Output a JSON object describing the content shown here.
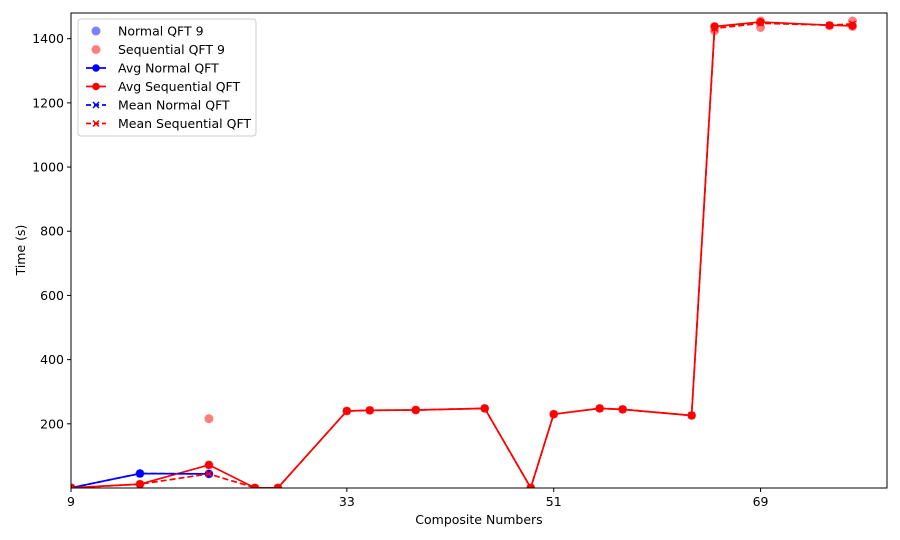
{
  "chart_data": {
    "type": "line",
    "title": "",
    "xlabel": "Composite Numbers",
    "ylabel": "Time (s)",
    "xlim": [
      9,
      80
    ],
    "ylim": [
      0,
      1480
    ],
    "xticks": [
      9,
      33,
      51,
      69
    ],
    "yticks": [
      200,
      400,
      600,
      800,
      1000,
      1200,
      1400
    ],
    "grid": false,
    "legend_position": "top-left",
    "series": [
      {
        "name": "Normal QFT 9",
        "kind": "scatter",
        "color": "#0000ff",
        "points": [
          [
            9,
            0.5
          ],
          [
            15,
            45
          ],
          [
            21,
            44
          ]
        ]
      },
      {
        "name": "Sequential QFT 9",
        "kind": "scatter",
        "color": "#ff0000",
        "points": [
          [
            9,
            0.5
          ],
          [
            15,
            12
          ],
          [
            21,
            216
          ],
          [
            21,
            72
          ],
          [
            25,
            0.5
          ],
          [
            27,
            0.5
          ],
          [
            33,
            240
          ],
          [
            35,
            242
          ],
          [
            39,
            243
          ],
          [
            45,
            248
          ],
          [
            49,
            0.5
          ],
          [
            51,
            230
          ],
          [
            55,
            248
          ],
          [
            57,
            245
          ],
          [
            63,
            226
          ],
          [
            65,
            1425
          ],
          [
            65,
            1438
          ],
          [
            69,
            1435
          ],
          [
            69,
            1455
          ],
          [
            75,
            1440
          ],
          [
            77,
            1455
          ],
          [
            77,
            1438
          ]
        ]
      },
      {
        "name": "Avg Normal QFT",
        "kind": "line",
        "style": "solid",
        "marker": "circle",
        "color": "#0000ff",
        "x": [
          9,
          15,
          21
        ],
        "y": [
          0.5,
          45,
          44
        ]
      },
      {
        "name": "Avg Sequential QFT",
        "kind": "line",
        "style": "solid",
        "marker": "circle",
        "color": "#ff0000",
        "x": [
          9,
          15,
          21,
          25,
          27,
          33,
          35,
          39,
          45,
          49,
          51,
          55,
          57,
          63,
          65,
          69,
          75,
          77
        ],
        "y": [
          0.5,
          12,
          72,
          0.5,
          0.5,
          240,
          242,
          243,
          248,
          0.5,
          230,
          248,
          245,
          226,
          1438,
          1452,
          1442,
          1440
        ]
      },
      {
        "name": "Mean Normal QFT",
        "kind": "line",
        "style": "dashed",
        "marker": "x",
        "color": "#0000ff",
        "x": [
          9,
          15,
          21
        ],
        "y": [
          0.5,
          45,
          44
        ]
      },
      {
        "name": "Mean Sequential QFT",
        "kind": "line",
        "style": "dashed",
        "marker": "x",
        "color": "#ff0000",
        "x": [
          9,
          15,
          21,
          25,
          27,
          33,
          35,
          39,
          45,
          49,
          51,
          55,
          57,
          63,
          65,
          69,
          75,
          77
        ],
        "y": [
          0.5,
          12,
          44,
          0.5,
          0.5,
          240,
          242,
          243,
          248,
          0.5,
          230,
          248,
          245,
          226,
          1432,
          1448,
          1442,
          1446
        ]
      }
    ]
  }
}
